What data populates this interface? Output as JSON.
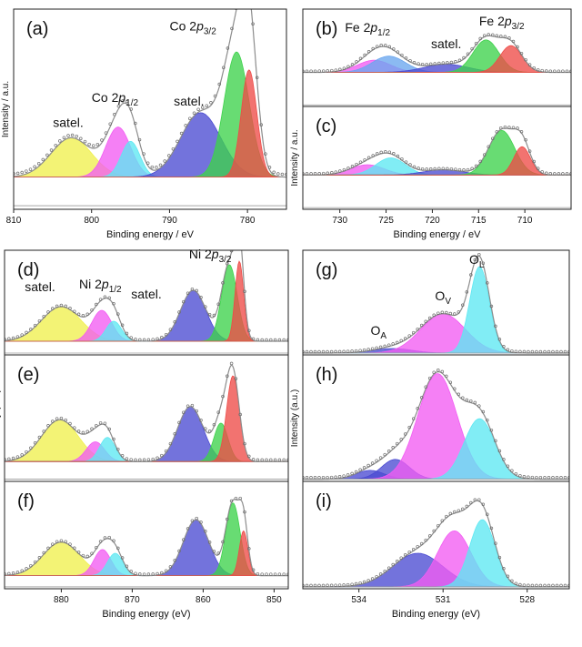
{
  "colors": {
    "axis": "#222222",
    "baseline": "#9a9a9a",
    "envelope": "#8c8c8c",
    "points": "#6d6d6d",
    "yellow": "#f0f04e",
    "magenta": "#f25cf2",
    "cyan": "#5ee8f2",
    "blue": "#4b4bd2",
    "green": "#3ed24b",
    "red": "#ee4c48",
    "skyblue": "#6aa6ee"
  },
  "chart_data": [
    {
      "id": "a",
      "type": "area",
      "panel_label": "(a)",
      "xlim": [
        810,
        775
      ],
      "xticks": [
        810,
        800,
        790,
        780
      ],
      "xlabel": "Binding energy / eV",
      "ylabel": "Intensity / a.u.",
      "ylim": [
        0,
        1.12
      ],
      "baseline": 0.02,
      "components": [
        {
          "color": "yellow",
          "center": 802.6,
          "height": 0.22,
          "width": 2.6,
          "base": 0.18
        },
        {
          "color": "magenta",
          "center": 796.6,
          "height": 0.28,
          "width": 1.6,
          "base": 0.18
        },
        {
          "color": "cyan",
          "center": 795.0,
          "height": 0.2,
          "width": 1.2,
          "base": 0.18
        },
        {
          "color": "blue",
          "center": 786.0,
          "height": 0.36,
          "width": 2.6,
          "base": 0.18
        },
        {
          "color": "green",
          "center": 781.4,
          "height": 0.7,
          "width": 1.6,
          "base": 0.18
        },
        {
          "color": "red",
          "center": 779.8,
          "height": 0.6,
          "width": 1.0,
          "base": 0.18
        }
      ],
      "annotations": [
        {
          "text": "satel.",
          "x": 803,
          "y": 0.46
        },
        {
          "text": "Co 2p",
          "sub": "1/2",
          "x": 797,
          "y": 0.6
        },
        {
          "text": "satel.",
          "x": 787.5,
          "y": 0.58
        },
        {
          "text": "Co 2p",
          "sub": "3/2",
          "x": 787,
          "y": 1.0
        }
      ]
    },
    {
      "id": "b",
      "type": "area",
      "panel_label": "(b)",
      "xlim": [
        734,
        705
      ],
      "xticks": [],
      "xlabel": "",
      "ylabel": "",
      "ylim": [
        0,
        1.2
      ],
      "baseline": 0.02,
      "components": [
        {
          "color": "magenta",
          "center": 726.3,
          "height": 0.15,
          "width": 1.8,
          "base": 0.42
        },
        {
          "color": "skyblue",
          "center": 724.7,
          "height": 0.2,
          "width": 1.8,
          "base": 0.42
        },
        {
          "color": "blue",
          "center": 718.5,
          "height": 0.1,
          "width": 2.4,
          "base": 0.42
        },
        {
          "color": "green",
          "center": 714.2,
          "height": 0.4,
          "width": 1.4,
          "base": 0.42
        },
        {
          "color": "red",
          "center": 711.5,
          "height": 0.33,
          "width": 1.2,
          "base": 0.42
        }
      ],
      "annotations": [
        {
          "text": "Fe 2p",
          "sub": "1/2",
          "x": 727,
          "y": 0.92
        },
        {
          "text": "satel.",
          "x": 718.5,
          "y": 0.72
        },
        {
          "text": "Fe 2p",
          "sub": "3/2",
          "x": 712.5,
          "y": 1.0
        }
      ]
    },
    {
      "id": "c",
      "type": "area",
      "panel_label": "(c)",
      "xlim": [
        734,
        705
      ],
      "xticks": [
        730,
        725,
        720,
        715,
        710
      ],
      "xlabel": "Binding energy / eV",
      "ylabel": "Intensity / a.u.",
      "ylim": [
        0,
        1.2
      ],
      "baseline": 0.02,
      "components": [
        {
          "color": "magenta",
          "center": 727.0,
          "height": 0.12,
          "width": 1.8,
          "base": 0.4
        },
        {
          "color": "cyan",
          "center": 724.5,
          "height": 0.2,
          "width": 1.6,
          "base": 0.4
        },
        {
          "color": "blue",
          "center": 718.8,
          "height": 0.06,
          "width": 2.2,
          "base": 0.4
        },
        {
          "color": "green",
          "center": 712.5,
          "height": 0.52,
          "width": 1.4,
          "base": 0.4
        },
        {
          "color": "red",
          "center": 710.3,
          "height": 0.33,
          "width": 0.9,
          "base": 0.4
        }
      ],
      "annotations": []
    },
    {
      "id": "d",
      "type": "area",
      "panel_label": "(d)",
      "xlim": [
        888,
        848
      ],
      "xticks": [],
      "xlabel": "",
      "ylabel": "",
      "ylim": [
        0,
        1.15
      ],
      "baseline": 0.02,
      "components": [
        {
          "color": "yellow",
          "center": 880.0,
          "height": 0.38,
          "width": 2.8,
          "base": 0.15
        },
        {
          "color": "magenta",
          "center": 874.3,
          "height": 0.34,
          "width": 1.4,
          "base": 0.15
        },
        {
          "color": "cyan",
          "center": 872.6,
          "height": 0.22,
          "width": 1.1,
          "base": 0.15
        },
        {
          "color": "blue",
          "center": 861.4,
          "height": 0.56,
          "width": 1.8,
          "base": 0.15
        },
        {
          "color": "green",
          "center": 856.3,
          "height": 0.84,
          "width": 1.1,
          "base": 0.15
        },
        {
          "color": "red",
          "center": 854.9,
          "height": 0.88,
          "width": 0.6,
          "base": 0.15
        }
      ],
      "annotations": [
        {
          "text": "satel.",
          "x": 883,
          "y": 0.7
        },
        {
          "text": "Ni 2p",
          "sub": "1/2",
          "x": 874.5,
          "y": 0.73
        },
        {
          "text": "satel.",
          "x": 868,
          "y": 0.62
        },
        {
          "text": "Ni 2p",
          "sub": "3/2",
          "x": 859,
          "y": 1.06
        }
      ]
    },
    {
      "id": "e",
      "type": "area",
      "panel_label": "(e)",
      "xlim": [
        888,
        848
      ],
      "xticks": [],
      "xlabel": "",
      "ylabel": "Intensity (a.u.)",
      "ylim": [
        0,
        1.15
      ],
      "baseline": 0.02,
      "components": [
        {
          "color": "yellow",
          "center": 880.2,
          "height": 0.38,
          "width": 2.6,
          "base": 0.18
        },
        {
          "color": "magenta",
          "center": 875.2,
          "height": 0.18,
          "width": 1.3,
          "base": 0.18
        },
        {
          "color": "cyan",
          "center": 873.5,
          "height": 0.22,
          "width": 1.1,
          "base": 0.18
        },
        {
          "color": "blue",
          "center": 861.8,
          "height": 0.5,
          "width": 1.8,
          "base": 0.18
        },
        {
          "color": "green",
          "center": 857.5,
          "height": 0.35,
          "width": 1.0,
          "base": 0.18
        },
        {
          "color": "red",
          "center": 855.8,
          "height": 0.78,
          "width": 0.9,
          "base": 0.18
        }
      ],
      "annotations": []
    },
    {
      "id": "f",
      "type": "area",
      "panel_label": "(f)",
      "xlim": [
        888,
        848
      ],
      "xticks": [
        880,
        870,
        860,
        850
      ],
      "xlabel": "Binding energy (eV)",
      "ylabel": "",
      "ylim": [
        0,
        1.15
      ],
      "baseline": 0.02,
      "components": [
        {
          "color": "yellow",
          "center": 880.0,
          "height": 0.36,
          "width": 2.6,
          "base": 0.14
        },
        {
          "color": "magenta",
          "center": 874.2,
          "height": 0.28,
          "width": 1.2,
          "base": 0.14
        },
        {
          "color": "cyan",
          "center": 872.4,
          "height": 0.24,
          "width": 1.1,
          "base": 0.14
        },
        {
          "color": "blue",
          "center": 861.0,
          "height": 0.6,
          "width": 1.8,
          "base": 0.14
        },
        {
          "color": "green",
          "center": 855.8,
          "height": 0.78,
          "width": 1.0,
          "base": 0.14
        },
        {
          "color": "red",
          "center": 854.3,
          "height": 0.48,
          "width": 0.6,
          "base": 0.14
        }
      ],
      "annotations": []
    },
    {
      "id": "g",
      "type": "area",
      "panel_label": "(g)",
      "xlim": [
        536,
        526.5
      ],
      "xticks": [],
      "xlabel": "",
      "ylabel": "",
      "ylim": [
        0,
        1.15
      ],
      "baseline": 0.02,
      "components": [
        {
          "color": "blue",
          "center": 532.8,
          "height": 0.05,
          "width": 0.7,
          "base": 0.02
        },
        {
          "color": "magenta",
          "center": 531.0,
          "height": 0.43,
          "width": 0.8,
          "base": 0.02
        },
        {
          "color": "cyan",
          "center": 529.7,
          "height": 0.95,
          "width": 0.35,
          "base": 0.02
        }
      ],
      "annotations": [
        {
          "text": "O",
          "sub": "A",
          "x": 533.3,
          "y": 0.22
        },
        {
          "text": "O",
          "sub": "V",
          "x": 531.0,
          "y": 0.6
        },
        {
          "text": "O",
          "sub": "L",
          "x": 529.8,
          "y": 1.0
        }
      ]
    },
    {
      "id": "h",
      "type": "area",
      "panel_label": "(h)",
      "xlim": [
        536,
        526.5
      ],
      "xticks": [],
      "xlabel": "",
      "ylabel": "Intensity (a.u.)",
      "ylim": [
        0,
        1.15
      ],
      "baseline": 0.02,
      "components": [
        {
          "color": "blue",
          "center": 533.6,
          "height": 0.08,
          "width": 0.5,
          "base": 0.02
        },
        {
          "color": "blue",
          "center": 532.7,
          "height": 0.18,
          "width": 0.5,
          "base": 0.02
        },
        {
          "color": "magenta",
          "center": 531.2,
          "height": 0.96,
          "width": 0.7,
          "base": 0.02
        },
        {
          "color": "cyan",
          "center": 529.7,
          "height": 0.55,
          "width": 0.55,
          "base": 0.02
        }
      ],
      "annotations": []
    },
    {
      "id": "i",
      "type": "area",
      "panel_label": "(i)",
      "xlim": [
        536,
        526.5
      ],
      "xticks": [
        534,
        531,
        528
      ],
      "xlabel": "Binding energy (eV)",
      "ylabel": "",
      "ylim": [
        0,
        1.15
      ],
      "baseline": 0.02,
      "components": [
        {
          "color": "blue",
          "center": 531.9,
          "height": 0.36,
          "width": 0.9,
          "base": 0.02
        },
        {
          "color": "magenta",
          "center": 530.6,
          "height": 0.6,
          "width": 0.6,
          "base": 0.02
        },
        {
          "color": "cyan",
          "center": 529.6,
          "height": 0.72,
          "width": 0.45,
          "base": 0.02
        }
      ],
      "annotations": []
    }
  ]
}
